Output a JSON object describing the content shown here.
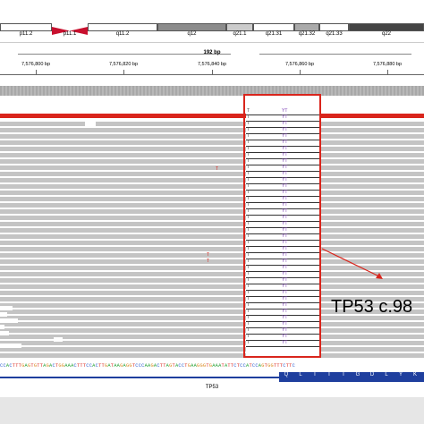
{
  "ideogram": {
    "bands": [
      {
        "label": "p11.2",
        "color": "#ffffff"
      },
      {
        "label": "p11.1",
        "color": "#c8102e"
      },
      {
        "label": "q11.2",
        "color": "#ffffff"
      },
      {
        "label": "q12",
        "color": "#8c8c8c"
      },
      {
        "label": "q21.1",
        "color": "#cccccc"
      },
      {
        "label": "q21.31",
        "color": "#ffffff"
      },
      {
        "label": "q21.32",
        "color": "#aaaaaa"
      },
      {
        "label": "q21.33",
        "color": "#ffffff"
      },
      {
        "label": "q22",
        "color": "#444444"
      }
    ]
  },
  "ruler": {
    "span": "192 bp",
    "ticks": [
      "7,576,800 bp",
      "7,576,820 bp",
      "7,576,840 bp",
      "7,576,860 bp",
      "7,576,880 bp"
    ]
  },
  "alignment": {
    "highlighted_rows": 38,
    "base_ref": "T",
    "base_read": "YT"
  },
  "annotation": {
    "callout": "TP53 c.98"
  },
  "sequence": "CCACTTTGAGTGTTAGACTGGAAACTTTCCACTTGATAAGAGGTCCCAAGACTTAGTACCTGAAGGGTGAAATATTCTCCATCCAGTGGTTTCTTC",
  "gene": {
    "name": "TP53",
    "amino_acids": [
      "Q",
      "L",
      "T",
      "I",
      "T",
      "G",
      "D",
      "L",
      "Y",
      "K"
    ]
  },
  "colors": {
    "selection": "#d9251c",
    "gene": "#1f3f9e",
    "read": "#c4c4c4"
  }
}
